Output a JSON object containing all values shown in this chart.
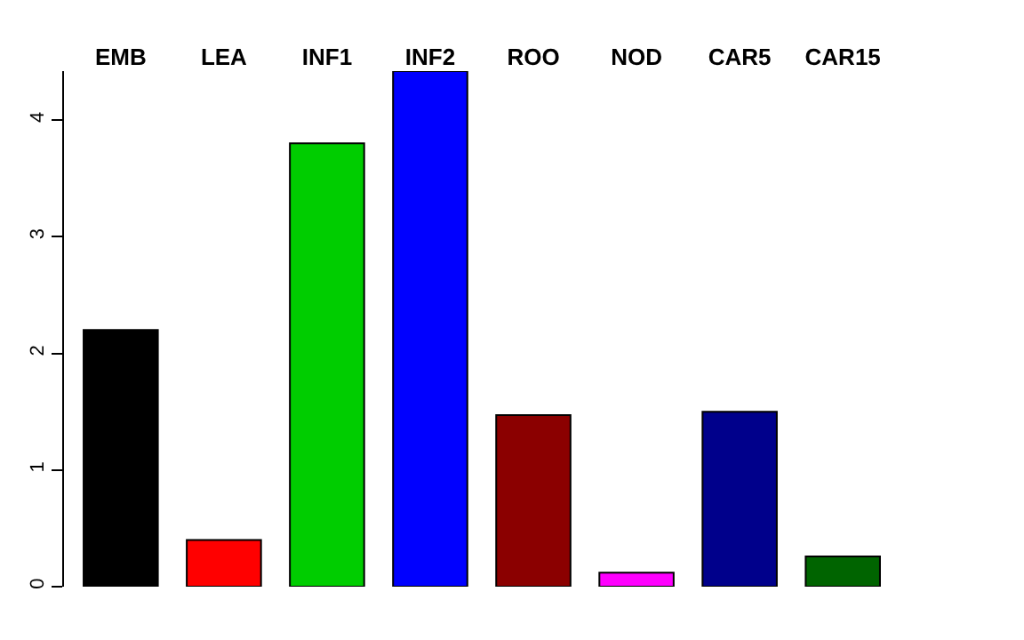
{
  "chart_data": {
    "type": "bar",
    "categories": [
      "EMB",
      "LEA",
      "INF1",
      "INF2",
      "ROO",
      "NOD",
      "CAR5",
      "CAR15"
    ],
    "values": [
      2.2,
      0.4,
      3.8,
      4.42,
      1.47,
      0.12,
      1.5,
      0.26
    ],
    "colors": [
      "#000000",
      "#ff0000",
      "#00cd00",
      "#0000ff",
      "#8b0000",
      "#ff00ff",
      "#00008b",
      "#006400"
    ],
    "ylim": [
      0,
      4.42
    ],
    "yticks": [
      0,
      1,
      2,
      3,
      4
    ],
    "grid": false
  }
}
